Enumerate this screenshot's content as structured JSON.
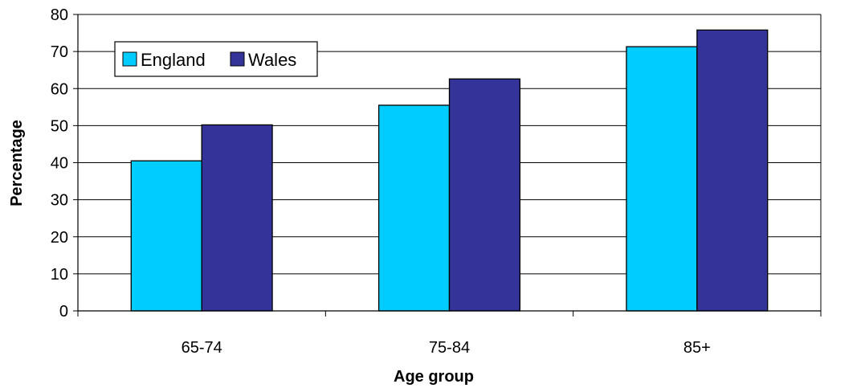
{
  "chart_data": {
    "type": "bar",
    "title": "",
    "xlabel": "Age group",
    "ylabel": "Percentage",
    "categories": [
      "65-74",
      "75-84",
      "85+"
    ],
    "series": [
      {
        "name": "England",
        "values": [
          40.5,
          55.5,
          71.3
        ],
        "color": "#00ccff"
      },
      {
        "name": "Wales",
        "values": [
          50.2,
          62.6,
          75.8
        ],
        "color": "#333399"
      }
    ],
    "ylim": [
      0,
      80
    ],
    "yticks": [
      0,
      10,
      20,
      30,
      40,
      50,
      60,
      70,
      80
    ],
    "grid": true,
    "legend_position": "top-left"
  }
}
